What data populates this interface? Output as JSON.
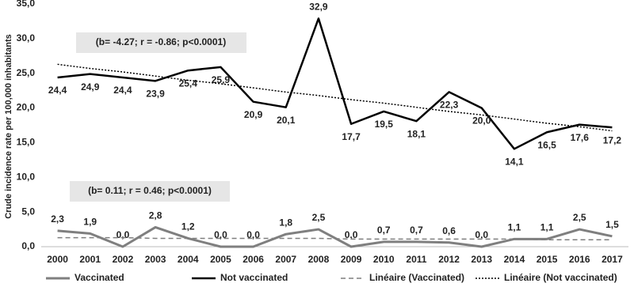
{
  "chart_data": {
    "type": "line",
    "y_label": "Crude incidence rate per 100,000 inhabitants",
    "annotations": [
      "(b= -4.27; r = -0.86; p<0.0001)",
      "(b= 0.11; r = 0.46; p<0.0001)"
    ],
    "categories": [
      "2000",
      "2001",
      "2002",
      "2003",
      "2004",
      "2005",
      "2006",
      "2007",
      "2008",
      "2009",
      "2010",
      "2011",
      "2012",
      "2013",
      "2014",
      "2015",
      "2016",
      "2017"
    ],
    "series": [
      {
        "name": "Vaccinated",
        "color": "#7f7f7f",
        "line_style": "solid",
        "width": 3,
        "values": [
          2.3,
          1.9,
          0.0,
          2.8,
          1.2,
          0.0,
          0.0,
          1.8,
          2.5,
          0.0,
          0.7,
          0.7,
          0.6,
          0.0,
          1.1,
          1.1,
          2.5,
          1.5
        ],
        "value_labels": [
          "2,3",
          "1,9",
          "0,0",
          "2,8",
          "1,2",
          "0,0",
          "0,0",
          "1,8",
          "2,5",
          "0,0",
          "0,7",
          "0,7",
          "0,6",
          "0,0",
          "1,1",
          "1,1",
          "2,5",
          "1,5"
        ]
      },
      {
        "name": "Not vaccinated",
        "color": "#000000",
        "line_style": "solid",
        "width": 2.5,
        "values": [
          24.4,
          24.9,
          24.4,
          23.9,
          25.4,
          25.9,
          20.9,
          20.1,
          32.9,
          17.7,
          19.5,
          18.1,
          22.3,
          20.0,
          14.1,
          16.5,
          17.6,
          17.2
        ],
        "value_labels": [
          "24,4",
          "24,9",
          "24,4",
          "23,9",
          "25,4",
          "25,9",
          "20,9",
          "20,1",
          "32,9",
          "17,7",
          "19,5",
          "18,1",
          "22,3",
          "20,0",
          "14,1",
          "16,5",
          "17,6",
          "17,2"
        ]
      },
      {
        "name": "Linéaire (Vaccinated)",
        "color": "#7f7f7f",
        "line_style": "dashed",
        "width": 1.5,
        "values": [
          1.3,
          1.3,
          1.3,
          1.2,
          1.2,
          1.2,
          1.2,
          1.2,
          1.2,
          1.1,
          1.1,
          1.1,
          1.1,
          1.1,
          1.1,
          1.0,
          1.0,
          1.0
        ]
      },
      {
        "name": "Linéaire (Not vaccinated)",
        "color": "#000000",
        "line_style": "dotted",
        "width": 1.5,
        "values": [
          26.3,
          25.7,
          25.2,
          24.6,
          24.0,
          23.5,
          22.9,
          22.3,
          21.8,
          21.2,
          20.7,
          20.1,
          19.5,
          19.0,
          18.4,
          17.8,
          17.3,
          16.7
        ]
      }
    ],
    "ylim": [
      0,
      35
    ],
    "yticks": [
      {
        "value": 0,
        "label": "0,0"
      },
      {
        "value": 5,
        "label": "5,0"
      },
      {
        "value": 10,
        "label": "10,0"
      },
      {
        "value": 15,
        "label": "15,0"
      },
      {
        "value": 20,
        "label": "20,0"
      },
      {
        "value": 25,
        "label": "25,0"
      },
      {
        "value": 30,
        "label": "30,0"
      },
      {
        "value": 35,
        "label": "35,0"
      }
    ],
    "grid": false,
    "legend": "bottom"
  }
}
